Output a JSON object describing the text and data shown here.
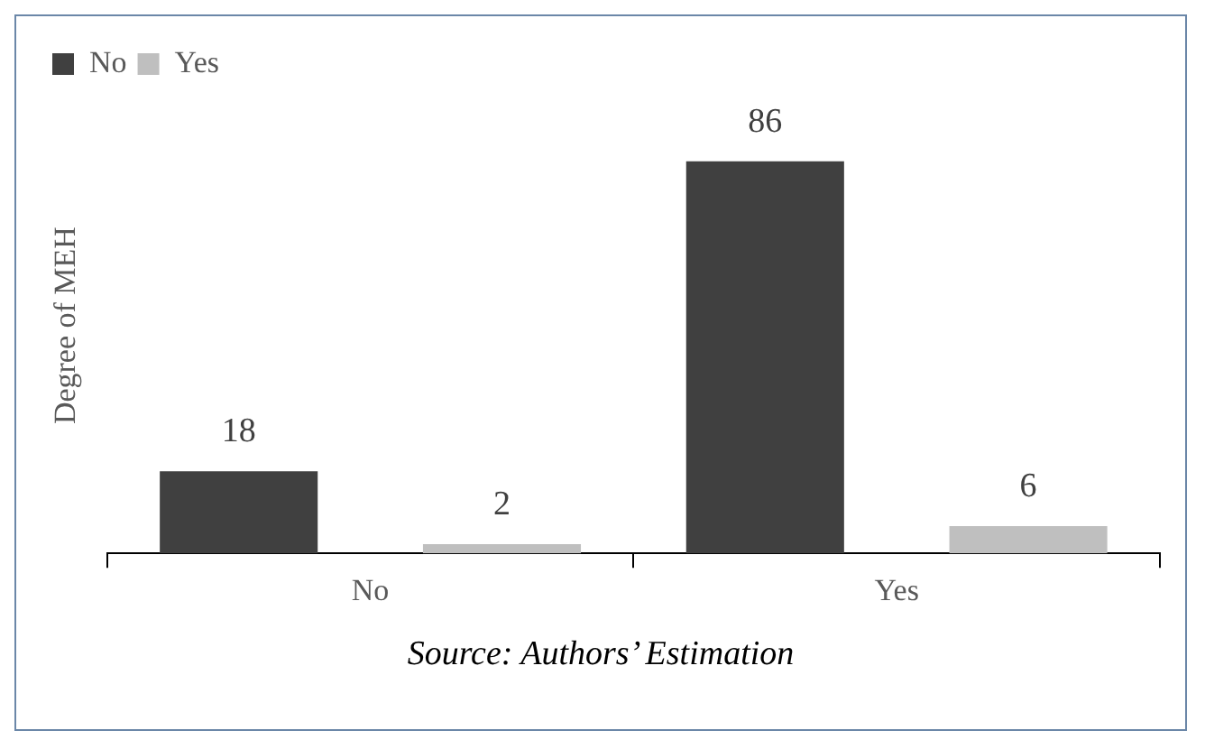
{
  "chart_data": {
    "type": "bar",
    "ylabel": "Degree of MEH",
    "categories": [
      "No",
      "Yes"
    ],
    "series": [
      {
        "name": "No",
        "color": "#404040",
        "values": [
          18,
          86
        ]
      },
      {
        "name": "Yes",
        "color": "#bfbfbf",
        "values": [
          2,
          6
        ]
      }
    ],
    "data_labels": true,
    "legend": "top left",
    "grid": false,
    "annotations": [
      "Source: Authors’ Estimation"
    ]
  }
}
